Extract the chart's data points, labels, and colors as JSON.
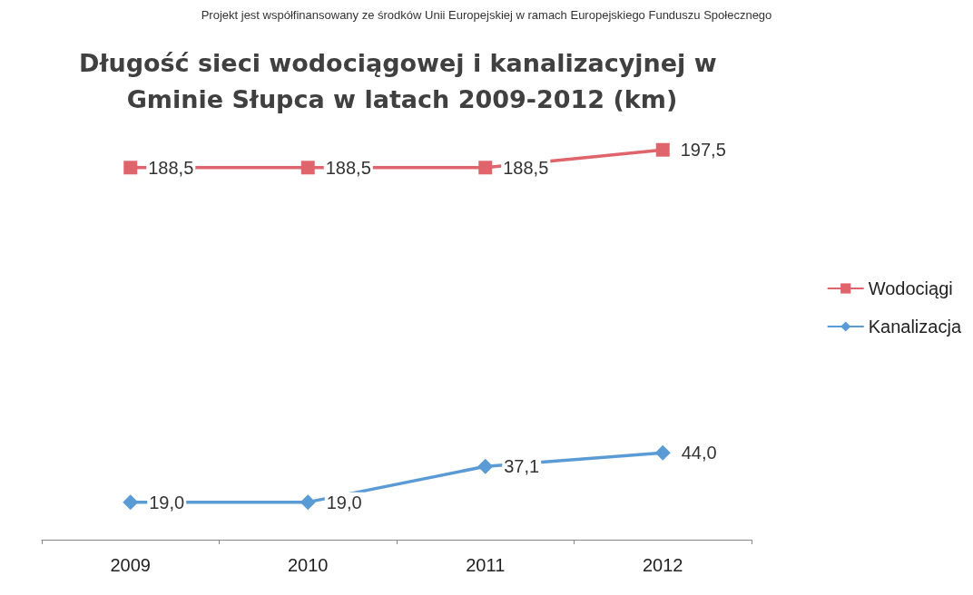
{
  "chart_data": {
    "type": "line",
    "title": "Długość sieci wodociągowej i kanalizacyjnej w Gminie Słupca w latach 2009-2012 (km)",
    "annotations": [
      "Projekt jest współfinansowany ze środków Unii Europejskiej w ramach Europejskiego Funduszu Społecznego"
    ],
    "categories": [
      "2009",
      "2010",
      "2011",
      "2012"
    ],
    "series": [
      {
        "name": "Wodociągi",
        "color": "#e0646c",
        "marker": "square",
        "values": [
          188.5,
          188.5,
          188.5,
          197.5
        ],
        "value_labels": [
          "188,5",
          "188,5",
          "188,5",
          "197,5"
        ]
      },
      {
        "name": "Kanalizacja",
        "color": "#5b9bd5",
        "marker": "diamond",
        "values": [
          19.0,
          19.0,
          37.1,
          44.0
        ],
        "value_labels": [
          "19,0",
          "19,0",
          "37,1",
          "44,0"
        ]
      }
    ],
    "legend": "right"
  }
}
